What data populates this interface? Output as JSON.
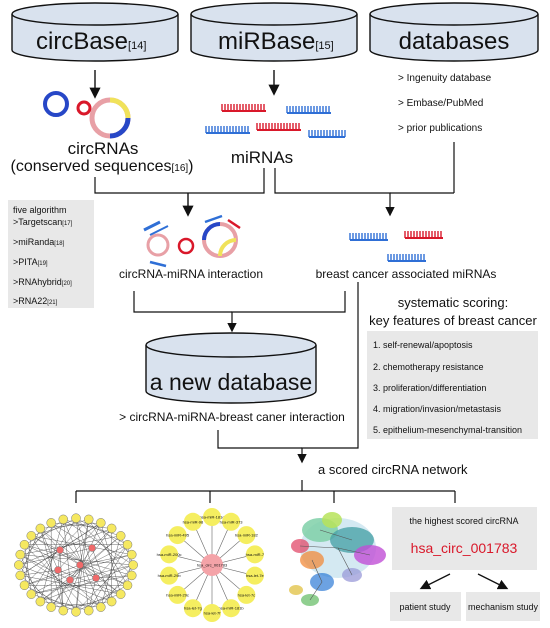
{
  "sources": {
    "circbase": {
      "label": "circBase",
      "ref": "[14]"
    },
    "mirbase": {
      "label": "miRBase",
      "ref": "[15]"
    },
    "databases": {
      "label": "databases",
      "items": [
        "> Ingenuity database",
        "> Embase/PubMed",
        "> prior publications"
      ]
    }
  },
  "circrnas": {
    "line1": "circRNAs",
    "line2": "(conserved sequences",
    "ref": "[16]",
    "line2_end": ")"
  },
  "mirnas": {
    "label": "miRNAs"
  },
  "algorithms": {
    "title": "five algorithm",
    "items": [
      {
        "name": ">Targetscan",
        "ref": "[17]"
      },
      {
        "name": ">miRanda",
        "ref": "[18]"
      },
      {
        "name": ">PITA",
        "ref": "[19]"
      },
      {
        "name": ">RNAhybrid",
        "ref": "[20]"
      },
      {
        "name": ">RNA22",
        "ref": "[21]"
      }
    ]
  },
  "interaction": {
    "label": "circRNA-miRNA interaction"
  },
  "bc_mirnas": {
    "label": "breast cancer associated miRNAs"
  },
  "scoring": {
    "title1": "systematic scoring:",
    "title2": "key features of breast cancer",
    "items": [
      "1. self-renewal/apoptosis",
      "2. chemotherapy resistance",
      "3. proliferation/differentiation",
      "4. migration/invasion/metastasis",
      "5. epithelium-mesenchymal-transition"
    ]
  },
  "new_db": {
    "label": "a new database",
    "caption": "> circRNA-miRNA-breast caner interaction"
  },
  "network": {
    "label": "a scored circRNA network"
  },
  "hub": {
    "center": "hsa_circ_001783",
    "nodes": [
      "hsa-miR-181d",
      "hsa-miR-373",
      "hsa-miR-182",
      "hsa-miR-7",
      "hsa-let-7e",
      "hsa-let-7c",
      "hsa-miR-181b",
      "hsa-let-7f",
      "hsa-let-7g",
      "hsa-miR-29c",
      "hsa-miR-29b",
      "hsa-miR-200c",
      "hsa-miR-495",
      "hsa-miR-98"
    ]
  },
  "highest": {
    "title": "the highest scored circRNA",
    "name": "hsa_circ_001783"
  },
  "studies": {
    "patient": "patient study",
    "mechanism": "mechanism study"
  },
  "colors": {
    "red": "#d9182a",
    "blue": "#2f6fd6",
    "db_top": "#d9e2ee",
    "box_grey": "#e8e8e8"
  }
}
